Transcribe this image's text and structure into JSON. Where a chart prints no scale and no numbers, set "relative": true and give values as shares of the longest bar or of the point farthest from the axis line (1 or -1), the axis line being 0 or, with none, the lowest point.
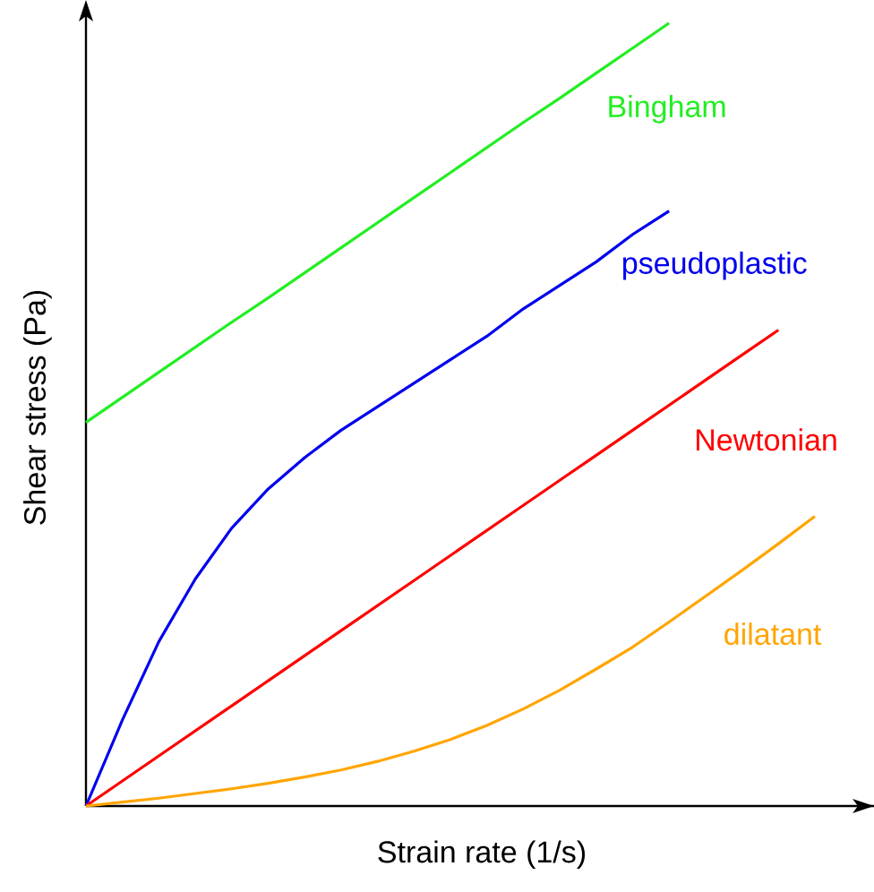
{
  "chart_data": {
    "type": "line",
    "relative": true,
    "xlabel": "Strain rate (1/s)",
    "ylabel": "Shear stress (Pa)",
    "legend": false,
    "marker": "none",
    "line_style": "solid",
    "categories": [
      null,
      null,
      null,
      null,
      null,
      null,
      null,
      null,
      null,
      null,
      null,
      null,
      null,
      null,
      null,
      null,
      null,
      null,
      null,
      null,
      null
    ],
    "series": [
      {
        "name": "Bingham",
        "color": "#22ee22",
        "values": [
          0.49,
          0.522,
          0.554,
          0.586,
          0.618,
          0.649,
          0.681,
          0.713,
          0.745,
          0.777,
          0.809,
          0.841,
          0.873,
          0.904,
          0.936,
          0.968,
          1.0,
          null,
          null,
          null,
          null
        ]
      },
      {
        "name": "pseudoplastic",
        "color": "#0000ee",
        "values": [
          0,
          0.11,
          0.21,
          0.29,
          0.355,
          0.405,
          0.445,
          0.48,
          0.51,
          0.54,
          0.57,
          0.6,
          0.635,
          0.665,
          0.695,
          0.73,
          0.76,
          null,
          null,
          null,
          null
        ]
      },
      {
        "name": "Newtonian",
        "color": "#ff0000",
        "values": [
          0,
          0.032,
          0.064,
          0.096,
          0.128,
          0.16,
          0.192,
          0.224,
          0.256,
          0.288,
          0.32,
          0.352,
          0.384,
          0.416,
          0.448,
          0.48,
          0.512,
          0.544,
          0.576,
          0.608,
          null
        ]
      },
      {
        "name": "dilatant",
        "color": "#ffa500",
        "values": [
          0,
          0.005,
          0.01,
          0.016,
          0.022,
          0.029,
          0.037,
          0.046,
          0.057,
          0.07,
          0.085,
          0.103,
          0.124,
          0.148,
          0.175,
          0.203,
          0.235,
          0.268,
          0.301,
          0.335,
          0.37
        ]
      }
    ]
  }
}
